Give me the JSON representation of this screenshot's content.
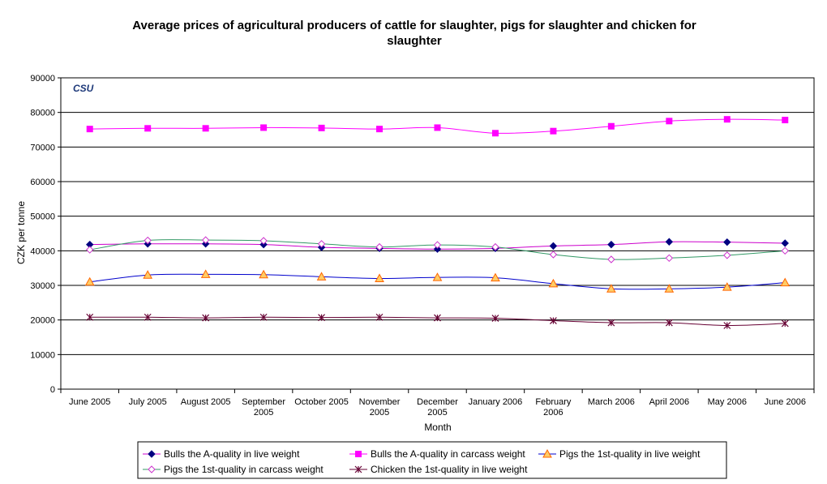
{
  "chart_data": {
    "type": "line",
    "title": "Average prices of agricultural producers of cattle for slaughter, pigs for slaughter and chicken for slaughter",
    "title_lines": [
      "Average prices of agricultural producers of cattle for slaughter, pigs for slaughter and chicken for",
      "slaughter"
    ],
    "xlabel": "Month",
    "ylabel": "CZK per tonne",
    "ylim": [
      0,
      90000
    ],
    "yticks": [
      0,
      10000,
      20000,
      30000,
      40000,
      50000,
      60000,
      70000,
      80000,
      90000
    ],
    "ytick_labels": [
      "0",
      "10000",
      "20000",
      "30000",
      "40000",
      "50000",
      "60000",
      "70000",
      "80000",
      "90000"
    ],
    "grid": true,
    "legend_position": "bottom",
    "logo": "CSU",
    "categories": [
      [
        "June 2005"
      ],
      [
        "July 2005"
      ],
      [
        "August 2005"
      ],
      [
        "September",
        "2005"
      ],
      [
        "October 2005"
      ],
      [
        "November",
        "2005"
      ],
      [
        "December",
        "2005"
      ],
      [
        "January 2006"
      ],
      [
        "February",
        "2006"
      ],
      [
        "March 2006"
      ],
      [
        "April 2006"
      ],
      [
        "May 2006"
      ],
      [
        "June 2006"
      ]
    ],
    "series": [
      {
        "name": "Bulls the A-quality in live weight",
        "color": "#000080",
        "line_color": "#cc00cc",
        "marker": "diamond",
        "values": [
          41800,
          42000,
          42000,
          41800,
          41000,
          40700,
          40500,
          40700,
          41400,
          41800,
          42600,
          42500,
          42200
        ]
      },
      {
        "name": "Bulls the A-quality in carcass weight",
        "color": "#ff00ff",
        "line_color": "#ff00ff",
        "marker": "square",
        "values": [
          75200,
          75400,
          75400,
          75600,
          75500,
          75200,
          75600,
          74000,
          74600,
          76000,
          77500,
          78000,
          77800
        ]
      },
      {
        "name": "Pigs the 1st-quality in live weight",
        "color": "#ff6600",
        "line_color": "#0000cc",
        "marker": "triangle",
        "values": [
          31000,
          33000,
          33200,
          33100,
          32500,
          32000,
          32300,
          32200,
          30500,
          29000,
          29000,
          29500,
          30800
        ]
      },
      {
        "name": "Pigs the 1st-quality in carcass weight",
        "color": "#cc33cc",
        "line_color": "#339966",
        "marker": "open-diamond",
        "values": [
          40300,
          43000,
          43100,
          42900,
          42000,
          41100,
          41700,
          41100,
          38900,
          37500,
          37900,
          38700,
          40000
        ]
      },
      {
        "name": "Chicken the 1st-quality in live weight",
        "color": "#660033",
        "line_color": "#660033",
        "marker": "star",
        "values": [
          20800,
          20800,
          20600,
          20800,
          20700,
          20800,
          20600,
          20500,
          19800,
          19200,
          19200,
          18400,
          19000
        ]
      }
    ]
  }
}
